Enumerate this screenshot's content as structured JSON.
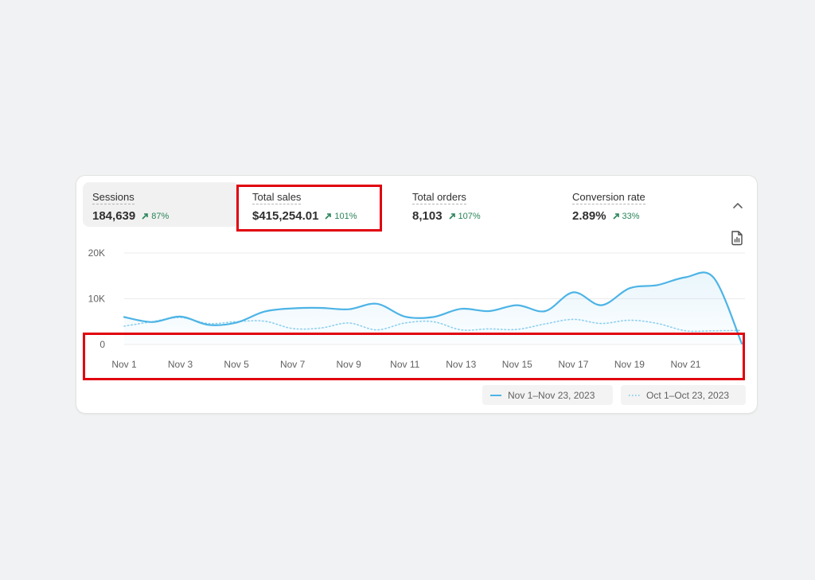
{
  "metrics": [
    {
      "label": "Sessions",
      "value": "184,639",
      "delta": "87%",
      "active": true
    },
    {
      "label": "Total sales",
      "value": "$415,254.01",
      "delta": "101%",
      "active": false
    },
    {
      "label": "Total orders",
      "value": "8,103",
      "delta": "107%",
      "active": false
    },
    {
      "label": "Conversion rate",
      "value": "2.89%",
      "delta": "33%",
      "active": false
    }
  ],
  "icons": {
    "collapse": "chevron-up-icon",
    "export": "file-chart-icon",
    "trend": "arrow-up-right-icon"
  },
  "colors": {
    "primary_series": "#4db4e6",
    "positive": "#29845a",
    "annotation": "#e1000f"
  },
  "chart_data": {
    "type": "area",
    "x": [
      "Nov 1",
      "Nov 2",
      "Nov 3",
      "Nov 4",
      "Nov 5",
      "Nov 6",
      "Nov 7",
      "Nov 8",
      "Nov 9",
      "Nov 10",
      "Nov 11",
      "Nov 12",
      "Nov 13",
      "Nov 14",
      "Nov 15",
      "Nov 16",
      "Nov 17",
      "Nov 18",
      "Nov 19",
      "Nov 20",
      "Nov 21",
      "Nov 22",
      "Nov 23"
    ],
    "x_tick_labels": [
      "Nov 1",
      "Nov 3",
      "Nov 5",
      "Nov 7",
      "Nov 9",
      "Nov 11",
      "Nov 13",
      "Nov 15",
      "Nov 17",
      "Nov 19",
      "Nov 21"
    ],
    "y_tick_labels": [
      "0",
      "10K",
      "20K"
    ],
    "ylim": [
      0,
      20000
    ],
    "grid": true,
    "legend_placement": "bottom-right",
    "series": [
      {
        "name": "Nov 1–Nov 23, 2023",
        "style": "solid",
        "values": [
          6000,
          4900,
          6100,
          4300,
          4800,
          7200,
          7900,
          8000,
          7700,
          8900,
          6100,
          6000,
          7800,
          7300,
          8600,
          7300,
          11400,
          8600,
          12300,
          13000,
          14700,
          14600,
          200
        ]
      },
      {
        "name": "Oct 1–Oct 23, 2023",
        "style": "dotted",
        "values": [
          4000,
          5000,
          5900,
          4600,
          5000,
          5100,
          3500,
          3600,
          4700,
          3200,
          4700,
          5000,
          3200,
          3400,
          3300,
          4500,
          5500,
          4600,
          5300,
          4600,
          3000,
          3000,
          3100
        ]
      }
    ]
  }
}
